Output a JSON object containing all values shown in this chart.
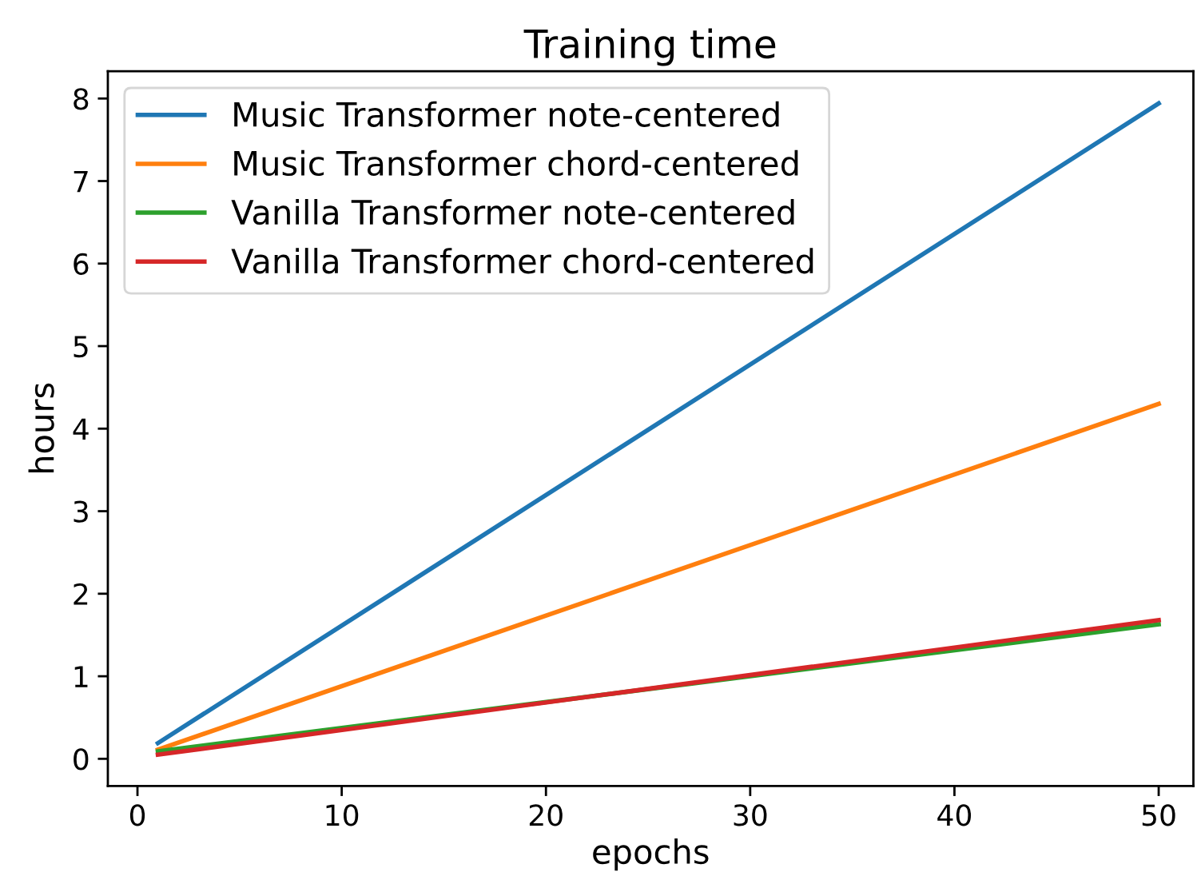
{
  "chart_data": {
    "type": "line",
    "title": "Training time",
    "xlabel": "epochs",
    "ylabel": "hours",
    "x": [
      1,
      50
    ],
    "xlim": [
      -1.45,
      51.7
    ],
    "xticks": [
      0,
      10,
      20,
      30,
      40,
      50
    ],
    "ylim": [
      -0.33,
      8.33
    ],
    "yticks": [
      0,
      1,
      2,
      3,
      4,
      5,
      6,
      7,
      8
    ],
    "grid": false,
    "legend": "top left",
    "marker": "none",
    "line_style": "solid",
    "series": [
      {
        "name": "Music Transformer note-centered",
        "color": "#1f77b4",
        "values": [
          0.19,
          7.94
        ]
      },
      {
        "name": "Music Transformer chord-centered",
        "color": "#ff7f0e",
        "values": [
          0.11,
          4.3
        ]
      },
      {
        "name": "Vanilla Transformer note-centered",
        "color": "#2ca02c",
        "values": [
          0.09,
          1.63
        ]
      },
      {
        "name": "Vanilla Transformer chord-centered",
        "color": "#d62728",
        "values": [
          0.05,
          1.68
        ]
      }
    ]
  }
}
